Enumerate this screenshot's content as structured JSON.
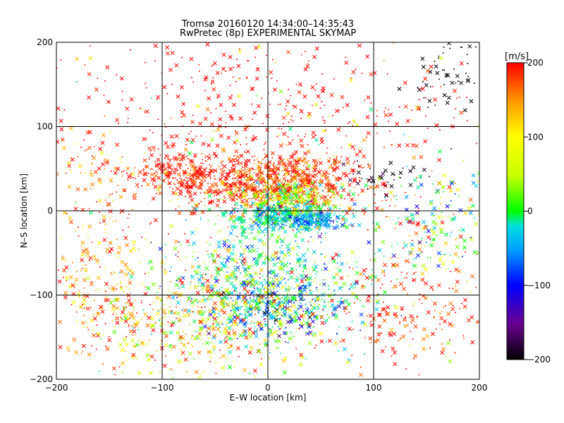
{
  "chart_data": {
    "type": "scatter",
    "title": "Tromsø 20160120 14:34:00–14:35:43",
    "subtitle": "RwPretec (8p) EXPERIMENTAL SKYMAP",
    "xlabel": "E–W location [km]",
    "ylabel": "N–S location [km]",
    "xlim": [
      -200,
      200
    ],
    "ylim": [
      -200,
      200
    ],
    "xticks": [
      -200,
      -100,
      0,
      100,
      200
    ],
    "yticks": [
      -200,
      -100,
      0,
      100,
      200
    ],
    "grid": true,
    "markers": [
      "cross",
      "dot"
    ],
    "colorbar": {
      "label": "[m/s]",
      "range": [
        -200,
        200
      ],
      "ticks": [
        200,
        100,
        0,
        -100,
        -200
      ],
      "colors": [
        "#000000",
        "#6a0090",
        "#0000ff",
        "#00a0ff",
        "#00e0e0",
        "#00ff00",
        "#c8ff00",
        "#ffff00",
        "#ff9900",
        "#ff0000"
      ]
    },
    "clusters": [
      {
        "cx": 5,
        "cy": 35,
        "sx": 45,
        "sy": 18,
        "n": 900,
        "v": 190,
        "vs": 25
      },
      {
        "cx": -85,
        "cy": 45,
        "sx": 20,
        "sy": 12,
        "n": 180,
        "v": 195,
        "vs": 10
      },
      {
        "cx": 20,
        "cy": 15,
        "sx": 25,
        "sy": 12,
        "n": 350,
        "v": 70,
        "vs": 60
      },
      {
        "cx": 15,
        "cy": -8,
        "sx": 28,
        "sy": 8,
        "n": 380,
        "v": -20,
        "vs": 40
      },
      {
        "cx": 45,
        "cy": -12,
        "sx": 12,
        "sy": 6,
        "n": 120,
        "v": -70,
        "vs": 30
      },
      {
        "cx": 0,
        "cy": -75,
        "sx": 45,
        "sy": 28,
        "n": 500,
        "v": -10,
        "vs": 60
      },
      {
        "cx": 15,
        "cy": -115,
        "sx": 40,
        "sy": 20,
        "n": 450,
        "v": -50,
        "vs": 70
      },
      {
        "cx": -60,
        "cy": -130,
        "sx": 50,
        "sy": 35,
        "n": 500,
        "v": 120,
        "vs": 60
      },
      {
        "cx": -160,
        "cy": -90,
        "sx": 30,
        "sy": 50,
        "n": 220,
        "v": 170,
        "vs": 40
      },
      {
        "cx": 165,
        "cy": -20,
        "sx": 30,
        "sy": 35,
        "n": 200,
        "v": 20,
        "vs": 80
      },
      {
        "cx": 130,
        "cy": -120,
        "sx": 45,
        "sy": 40,
        "n": 220,
        "v": 190,
        "vs": 20
      },
      {
        "cx": 0,
        "cy": 130,
        "sx": 120,
        "sy": 45,
        "n": 380,
        "v": 200,
        "vs": 8
      },
      {
        "cx": 175,
        "cy": 160,
        "sx": 20,
        "sy": 30,
        "n": 60,
        "v": -200,
        "vs": 5
      },
      {
        "cx": 110,
        "cy": 40,
        "sx": 20,
        "sy": 10,
        "n": 40,
        "v": -190,
        "vs": 10
      },
      {
        "cx": -160,
        "cy": 40,
        "sx": 20,
        "sy": 30,
        "n": 80,
        "v": 170,
        "vs": 40
      },
      {
        "cx": 0,
        "cy": 0,
        "sx": 130,
        "sy": 110,
        "n": 400,
        "v": 150,
        "vs": 80
      }
    ]
  }
}
